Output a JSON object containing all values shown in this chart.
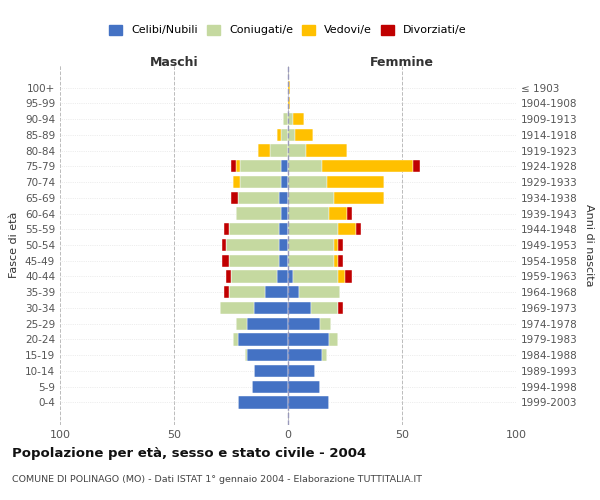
{
  "age_groups": [
    "0-4",
    "5-9",
    "10-14",
    "15-19",
    "20-24",
    "25-29",
    "30-34",
    "35-39",
    "40-44",
    "45-49",
    "50-54",
    "55-59",
    "60-64",
    "65-69",
    "70-74",
    "75-79",
    "80-84",
    "85-89",
    "90-94",
    "95-99",
    "100+"
  ],
  "birth_years": [
    "1999-2003",
    "1994-1998",
    "1989-1993",
    "1984-1988",
    "1979-1983",
    "1974-1978",
    "1969-1973",
    "1964-1968",
    "1959-1963",
    "1954-1958",
    "1949-1953",
    "1944-1948",
    "1939-1943",
    "1934-1938",
    "1929-1933",
    "1924-1928",
    "1919-1923",
    "1914-1918",
    "1909-1913",
    "1904-1908",
    "≤ 1903"
  ],
  "males": {
    "celibe": [
      22,
      16,
      15,
      18,
      22,
      18,
      15,
      10,
      5,
      4,
      4,
      4,
      3,
      4,
      3,
      3,
      0,
      0,
      0,
      0,
      0
    ],
    "coniugato": [
      0,
      0,
      0,
      1,
      2,
      5,
      15,
      16,
      20,
      22,
      23,
      22,
      20,
      18,
      18,
      18,
      8,
      3,
      2,
      0,
      0
    ],
    "vedovo": [
      0,
      0,
      0,
      0,
      0,
      0,
      0,
      0,
      0,
      0,
      0,
      0,
      0,
      0,
      3,
      2,
      5,
      2,
      0,
      0,
      0
    ],
    "divorziato": [
      0,
      0,
      0,
      0,
      0,
      0,
      0,
      2,
      2,
      3,
      2,
      2,
      0,
      3,
      0,
      2,
      0,
      0,
      0,
      0,
      0
    ]
  },
  "females": {
    "nubile": [
      18,
      14,
      12,
      15,
      18,
      14,
      10,
      5,
      2,
      0,
      0,
      0,
      0,
      0,
      0,
      0,
      0,
      0,
      0,
      0,
      0
    ],
    "coniugata": [
      0,
      0,
      0,
      2,
      4,
      5,
      12,
      18,
      20,
      20,
      20,
      22,
      18,
      20,
      17,
      15,
      8,
      3,
      2,
      0,
      0
    ],
    "vedova": [
      0,
      0,
      0,
      0,
      0,
      0,
      0,
      0,
      3,
      2,
      2,
      8,
      8,
      22,
      25,
      40,
      18,
      8,
      5,
      1,
      1
    ],
    "divorziata": [
      0,
      0,
      0,
      0,
      0,
      0,
      2,
      0,
      3,
      2,
      2,
      2,
      2,
      0,
      0,
      3,
      0,
      0,
      0,
      0,
      0
    ]
  },
  "colors": {
    "celibe": "#4472c4",
    "coniugato": "#c5d9a0",
    "vedovo": "#ffc000",
    "divorziato": "#c00000"
  },
  "title": "Popolazione per età, sesso e stato civile - 2004",
  "subtitle": "COMUNE DI POLINAGO (MO) - Dati ISTAT 1° gennaio 2004 - Elaborazione TUTTITALIA.IT",
  "xlabel_left": "Maschi",
  "xlabel_right": "Femmine",
  "ylabel_left": "Fasce di età",
  "ylabel_right": "Anni di nascita",
  "xlim": 100,
  "legend_labels": [
    "Celibi/Nubili",
    "Coniugati/e",
    "Vedovi/e",
    "Divorziati/e"
  ],
  "bg_color": "#ffffff",
  "grid_color": "#cccccc"
}
